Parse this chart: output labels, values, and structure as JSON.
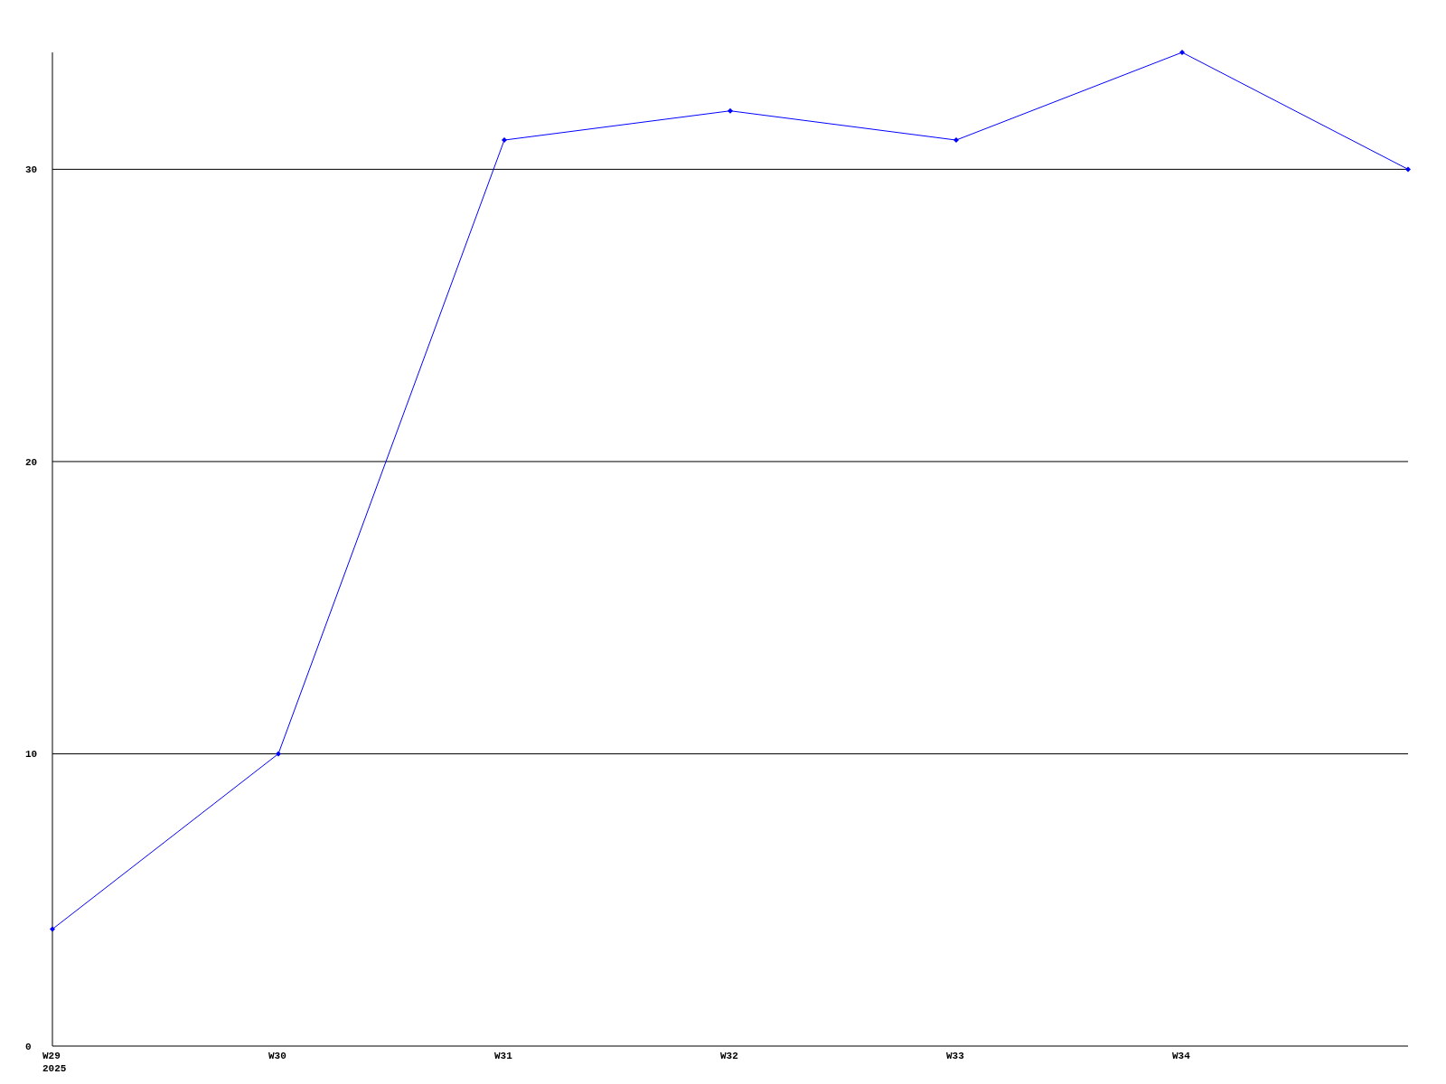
{
  "chart_data": {
    "type": "line",
    "categories": [
      "W29\n2025",
      "W30",
      "W31",
      "W32",
      "W33",
      "W34",
      null
    ],
    "series": [
      {
        "color": "#0000ff",
        "values": [
          4,
          10,
          31,
          32,
          31,
          34,
          30
        ]
      }
    ],
    "ylim": [
      0,
      34
    ],
    "yticks": [
      0,
      10,
      20,
      30
    ],
    "grid": "y",
    "marker": "diamond"
  }
}
